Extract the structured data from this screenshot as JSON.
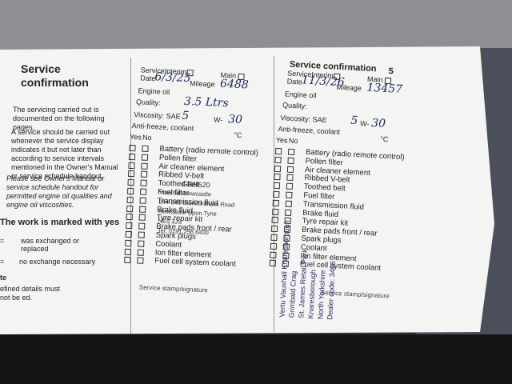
{
  "intro": {
    "title": "Service confirmation",
    "paragraphs": [
      "The servicing carried out is documented on the following pages.",
      "A service should be carried out whenever the service display indicates it but not later than according to service intervals mentioned in the Owner's Manual or service schedule handout.",
      "Please see Owner's Manual or service schedule handout for permitted engine oil qualities and engine oil viscosities."
    ],
    "marked_heading": "The work is marked with yes",
    "legend": [
      "was exchanged or replaced",
      "no exchange necessary"
    ],
    "note_heading": "te",
    "note": "efined details must not be ed."
  },
  "forms": [
    {
      "service": "Service",
      "interim": "Interim",
      "main": "Main",
      "date_label": "Date",
      "date": "6/3/25",
      "mileage_label": "Mileage",
      "mileage": "6488",
      "engine_oil": "Engine oil",
      "quality_label": "Quality:",
      "quality": "3.5 Ltrs",
      "viscosity_label": "Viscosity: SAE",
      "viscosity_a": "5",
      "w": "W-",
      "viscosity_b": "30",
      "antifreeze": "Anti-freeze, coolant",
      "degrees": "°C",
      "yes": "Yes",
      "no": "No",
      "items": [
        "Battery (radio remote control)",
        "Pollen filter",
        "Air cleaner element",
        "Ribbed V-belt",
        "Toothed belt",
        "Fuel filter",
        "Transmission fluid",
        "Brake fluid",
        "Tyre repair kit",
        "Brake pads front / rear",
        "Spark plugs",
        "Coolant",
        "Ion filter element",
        "Fuel cell system coolant"
      ],
      "stamp": [
        "GRN520",
        "Vauxhall Newcastle",
        "244-246 Stamfordham Road",
        "Newcastle Upon Tyne",
        "NE5 3JS",
        "Tel: 0191 256 6400"
      ],
      "stamp_label": "Service stamp/signature"
    },
    {
      "header": "Service confirmation",
      "page": "5",
      "service": "Service",
      "interim": "Interim",
      "main": "Main",
      "date_label": "Date",
      "date": "11/3/26",
      "mileage_label": "Mileage",
      "mileage": "13457",
      "engine_oil": "Engine oil",
      "quality_label": "Quality:",
      "quality": "",
      "viscosity_label": "Viscosity: SAE",
      "viscosity_a": "5",
      "w": "W-",
      "viscosity_b": "30",
      "antifreeze": "Anti-freeze, coolant",
      "degrees": "°C",
      "yes": "Yes",
      "no": "No",
      "items": [
        "Battery (radio remote control)",
        "Pollen filter",
        "Air cleaner element",
        "Ribbed V-belt",
        "Toothed belt",
        "Fuel filter",
        "Transmission fluid",
        "Brake fluid",
        "Tyre repair kit",
        "Brake pads front / rear",
        "Spark plugs",
        "Coolant",
        "Ion filter element",
        "Fuel cell system coolant"
      ],
      "stamp": [
        "Vertu Vauxhall Knaresborough",
        "Grimbald Crag",
        "St. James Retail Park",
        "Knaresborough",
        "North Yorkshire",
        "Dealer code: 3496"
      ],
      "stamp_label": "Service stamp/signature"
    }
  ]
}
